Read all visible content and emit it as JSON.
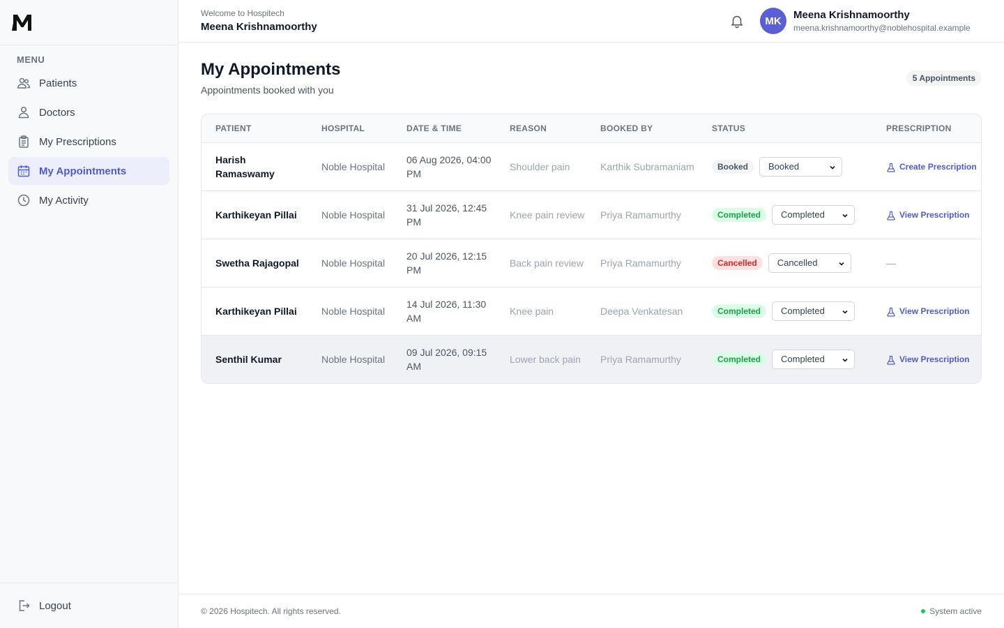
{
  "app": {
    "logo_letter": "M"
  },
  "sidebar": {
    "menu_heading": "MENU",
    "items": [
      {
        "label": "Patients",
        "icon": "users-icon",
        "active": false
      },
      {
        "label": "Doctors",
        "icon": "user-icon",
        "active": false
      },
      {
        "label": "My Prescriptions",
        "icon": "clipboard-icon",
        "active": false
      },
      {
        "label": "My Appointments",
        "icon": "calendar-icon",
        "active": true
      },
      {
        "label": "My Activity",
        "icon": "clock-icon",
        "active": false
      }
    ],
    "logout_label": "Logout"
  },
  "header": {
    "welcome": "Welcome to Hospitech",
    "name": "Meena Krishnamoorthy",
    "avatar_initials": "MK",
    "user_name": "Meena Krishnamoorthy",
    "user_email": "meena.krishnamoorthy@noblehospital.example"
  },
  "page": {
    "title": "My Appointments",
    "subtitle": "Appointments booked with you",
    "count_badge": "5 Appointments"
  },
  "table": {
    "columns": [
      "PATIENT",
      "HOSPITAL",
      "DATE & TIME",
      "REASON",
      "BOOKED BY",
      "STATUS",
      "PRESCRIPTION"
    ],
    "rows": [
      {
        "patient": "Harish Ramaswamy",
        "hospital": "Noble Hospital",
        "datetime": "06 Aug 2026, 04:00 PM",
        "reason": "Shoulder pain",
        "booked_by": "Karthik Subramaniam",
        "status": "Booked",
        "status_kind": "booked",
        "select_value": "Booked",
        "prescription": "Create Prescription"
      },
      {
        "patient": "Karthikeyan Pillai",
        "hospital": "Noble Hospital",
        "datetime": "31 Jul 2026, 12:45 PM",
        "reason": "Knee pain review",
        "booked_by": "Priya Ramamurthy",
        "status": "Completed",
        "status_kind": "completed",
        "select_value": "Completed",
        "prescription": "View Prescription"
      },
      {
        "patient": "Swetha Rajagopal",
        "hospital": "Noble Hospital",
        "datetime": "20 Jul 2026, 12:15 PM",
        "reason": "Back pain review",
        "booked_by": "Priya Ramamurthy",
        "status": "Cancelled",
        "status_kind": "cancelled",
        "select_value": "Cancelled",
        "prescription": "—"
      },
      {
        "patient": "Karthikeyan Pillai",
        "hospital": "Noble Hospital",
        "datetime": "14 Jul 2026, 11:30 AM",
        "reason": "Knee pain",
        "booked_by": "Deepa Venkatesan",
        "status": "Completed",
        "status_kind": "completed",
        "select_value": "Completed",
        "prescription": "View Prescription"
      },
      {
        "patient": "Senthil Kumar",
        "hospital": "Noble Hospital",
        "datetime": "09 Jul 2026, 09:15 AM",
        "reason": "Lower back pain",
        "booked_by": "Priya Ramamurthy",
        "status": "Completed",
        "status_kind": "completed",
        "select_value": "Completed",
        "prescription": "View Prescription"
      }
    ]
  },
  "footer": {
    "copyright": "© 2026 Hospitech. All rights reserved.",
    "system_status": "System active"
  },
  "colors": {
    "accent": "#4f5bd5",
    "avatar": "#5b5fd6",
    "completed": "#16a34a",
    "cancelled": "#dc2626",
    "system_dot": "#22c55e"
  }
}
